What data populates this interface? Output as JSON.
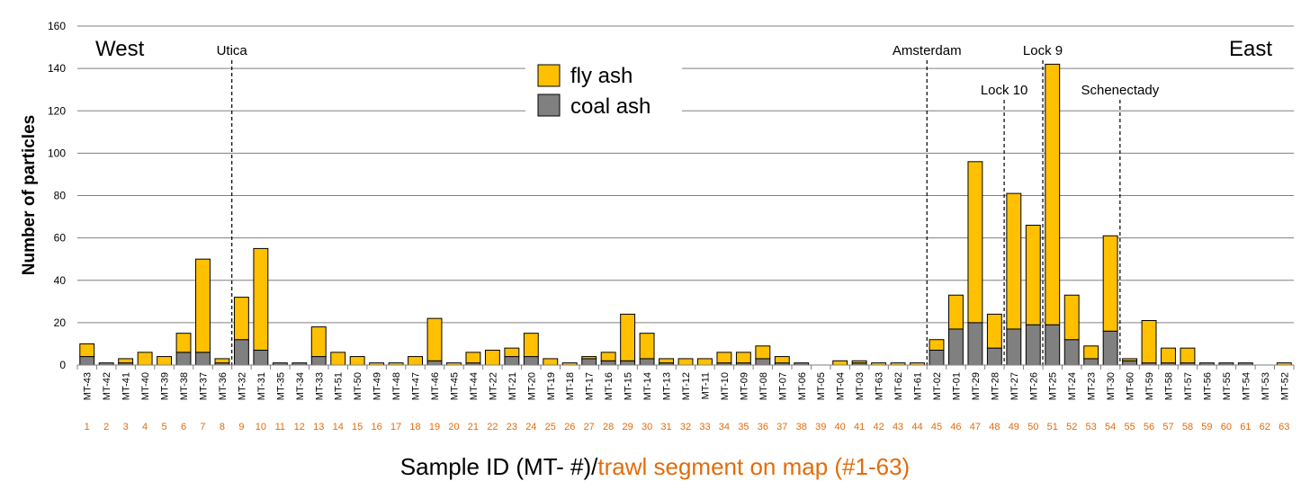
{
  "chart_data": {
    "type": "bar",
    "stacked": true,
    "ylabel": "Number of particles",
    "ylim": [
      0,
      160
    ],
    "yticks": [
      0,
      20,
      40,
      60,
      80,
      100,
      120,
      140,
      160
    ],
    "grid": true,
    "legend_position": "top-center",
    "direction_labels": {
      "left": "West",
      "right": "East"
    },
    "xlabel": {
      "part1": "Sample ID (MT- #)/",
      "part2": "trawl segment on map (#1-63)"
    },
    "colors": {
      "fly_ash": "#FFC000",
      "coal_ash": "#808080",
      "segment_label": "#E36C0A",
      "grid": "#808080"
    },
    "categories": [
      "MT-43",
      "MT-42",
      "MT-41",
      "MT-40",
      "MT-39",
      "MT-38",
      "MT-37",
      "MT-36",
      "MT-32",
      "MT-31",
      "MT-35",
      "MT-34",
      "MT-33",
      "MT-51",
      "MT-50",
      "MT-49",
      "MT-48",
      "MT-47",
      "MT-46",
      "MT-45",
      "MT-44",
      "MT-22",
      "MT-21",
      "MT-20",
      "MT-19",
      "MT-18",
      "MT-17",
      "MT-16",
      "MT-15",
      "MT-14",
      "MT-13",
      "MT-12",
      "MT-11",
      "MT-10",
      "MT-09",
      "MT-08",
      "MT-07",
      "MT-06",
      "MT-05",
      "MT-04",
      "MT-03",
      "MT-63",
      "MT-62",
      "MT-61",
      "MT-02",
      "MT-01",
      "MT-29",
      "MT-28",
      "MT-27",
      "MT-26",
      "MT-25",
      "MT-24",
      "MT-23",
      "MT-30",
      "MT-60",
      "MT-59",
      "MT-58",
      "MT-57",
      "MT-56",
      "MT-55",
      "MT-54",
      "MT-53",
      "MT-52"
    ],
    "segments": [
      "1",
      "2",
      "3",
      "4",
      "5",
      "6",
      "7",
      "8",
      "9",
      "10",
      "11",
      "12",
      "13",
      "14",
      "15",
      "16",
      "17",
      "18",
      "19",
      "20",
      "21",
      "22",
      "23",
      "24",
      "25",
      "26",
      "27",
      "28",
      "29",
      "30",
      "31",
      "32",
      "33",
      "34",
      "35",
      "36",
      "37",
      "38",
      "39",
      "40",
      "41",
      "42",
      "43",
      "44",
      "45",
      "46",
      "47",
      "48",
      "49",
      "50",
      "51",
      "52",
      "53",
      "54",
      "55",
      "56",
      "57",
      "58",
      "59",
      "60",
      "61",
      "62",
      "63"
    ],
    "series": [
      {
        "name": "coal ash",
        "values": [
          4,
          1,
          1,
          0,
          0,
          6,
          6,
          1,
          12,
          7,
          1,
          1,
          4,
          0,
          0,
          0,
          0,
          0,
          2,
          0,
          1,
          0,
          4,
          4,
          0,
          0,
          3,
          2,
          2,
          3,
          1,
          0,
          0,
          1,
          1,
          3,
          1,
          1,
          0,
          0,
          1,
          0,
          0,
          0,
          7,
          17,
          20,
          8,
          17,
          19,
          19,
          12,
          3,
          16,
          2,
          1,
          1,
          1,
          1,
          1,
          1,
          0,
          0
        ]
      },
      {
        "name": "fly ash",
        "values": [
          6,
          0,
          2,
          6,
          4,
          9,
          44,
          2,
          20,
          48,
          0,
          0,
          14,
          6,
          4,
          1,
          1,
          4,
          20,
          1,
          5,
          7,
          4,
          11,
          3,
          1,
          1,
          4,
          22,
          12,
          2,
          3,
          3,
          5,
          5,
          6,
          3,
          0,
          0,
          2,
          1,
          1,
          1,
          1,
          5,
          16,
          76,
          16,
          64,
          47,
          123,
          21,
          6,
          45,
          1,
          20,
          7,
          7,
          0,
          0,
          0,
          0,
          1
        ]
      }
    ],
    "annotations": [
      {
        "label": "Utica",
        "after_index": 7
      },
      {
        "label": "Amsterdam",
        "after_index": 43
      },
      {
        "label": "Lock 10",
        "after_index": 47
      },
      {
        "label": "Lock 9",
        "after_index": 49
      },
      {
        "label": "Schenectady",
        "after_index": 53
      }
    ]
  }
}
